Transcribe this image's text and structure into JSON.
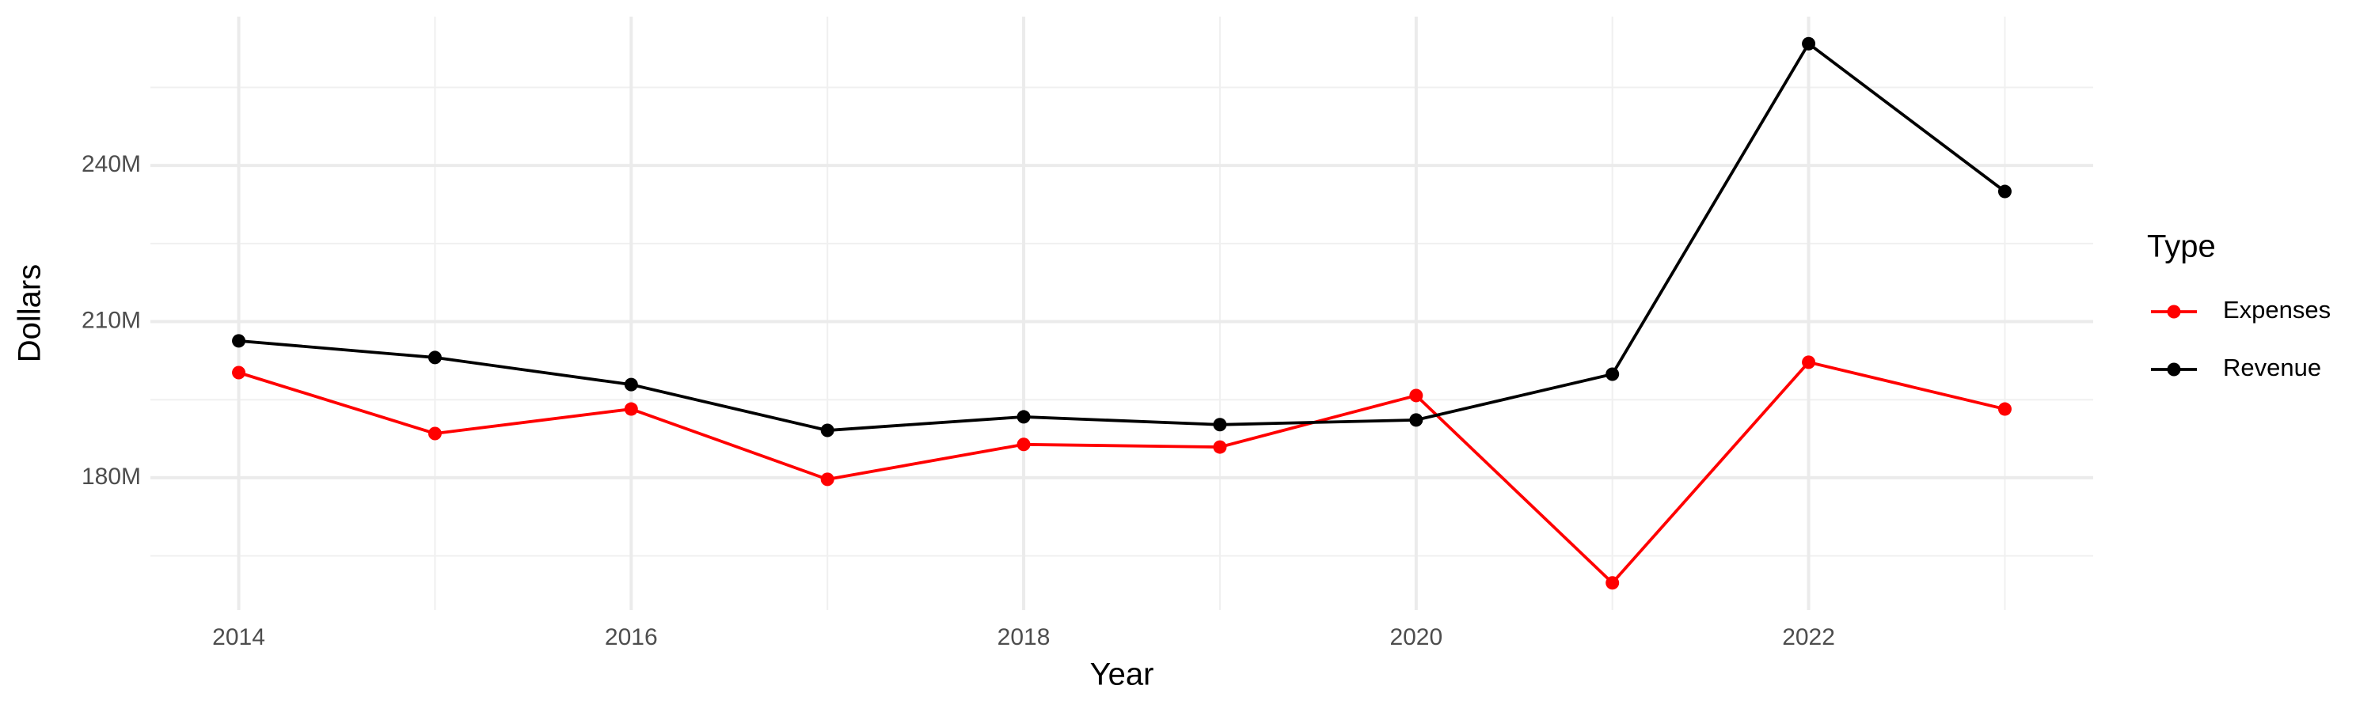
{
  "chart_data": {
    "type": "line",
    "x_label": "Year",
    "y_label": "Dollars",
    "legend_title": "Type",
    "x": [
      2014,
      2015,
      2016,
      2017,
      2018,
      2019,
      2020,
      2021,
      2022,
      2023
    ],
    "series": [
      {
        "name": "Expenses",
        "color": "#ff0000",
        "values": [
          200200000,
          188500000,
          193200000,
          179700000,
          186400000,
          185900000,
          195800000,
          159800000,
          202200000,
          193200000
        ]
      },
      {
        "name": "Revenue",
        "color": "#000000",
        "values": [
          206300000,
          203100000,
          197900000,
          189100000,
          191700000,
          190200000,
          191100000,
          199900000,
          263400000,
          235000000
        ]
      }
    ],
    "xlim": [
      2013.55,
      2023.45
    ],
    "xticks": [
      2014,
      2016,
      2018,
      2020,
      2022
    ],
    "xminor": [
      2015,
      2017,
      2019,
      2021,
      2023
    ],
    "ylim": [
      154600000,
      268600000
    ],
    "yticks": [
      {
        "value": 180000000,
        "label": "180M"
      },
      {
        "value": 210000000,
        "label": "210M"
      },
      {
        "value": 240000000,
        "label": "240M"
      }
    ],
    "yminor": [
      165000000,
      195000000,
      225000000,
      255000000
    ],
    "grid": true,
    "legend": "right"
  }
}
